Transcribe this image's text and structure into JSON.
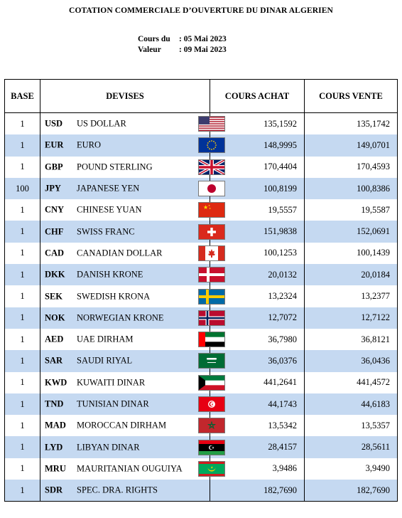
{
  "title": "COTATION COMMERCIALE D’OUVERTURE DU DINAR ALGERIEN",
  "cours_label": "Cours du",
  "cours_value": ": 05 Mai 2023",
  "valeur_label": "Valeur",
  "valeur_value": ": 09 Mai 2023",
  "headers": {
    "base": "BASE",
    "devises": "DEVISES",
    "achat": "COURS ACHAT",
    "vente": "COURS VENTE"
  },
  "rows": [
    {
      "base": "1",
      "code": "USD",
      "name": "US DOLLAR",
      "flag": "us-flag",
      "achat": "135,1592",
      "vente": "135,1742"
    },
    {
      "base": "1",
      "code": "EUR",
      "name": "EURO",
      "flag": "eu-flag",
      "achat": "148,9995",
      "vente": "149,0701"
    },
    {
      "base": "1",
      "code": "GBP",
      "name": "POUND STERLING",
      "flag": "uk-flag",
      "achat": "170,4404",
      "vente": "170,4593"
    },
    {
      "base": "100",
      "code": "JPY",
      "name": "JAPANESE YEN",
      "flag": "japan-flag",
      "achat": "100,8199",
      "vente": "100,8386"
    },
    {
      "base": "1",
      "code": "CNY",
      "name": "CHINESE YUAN",
      "flag": "china-flag",
      "achat": "19,5557",
      "vente": "19,5587"
    },
    {
      "base": "1",
      "code": "CHF",
      "name": "SWISS FRANC",
      "flag": "swiss-flag",
      "achat": "151,9838",
      "vente": "152,0691"
    },
    {
      "base": "1",
      "code": "CAD",
      "name": "CANADIAN DOLLAR",
      "flag": "canada-flag",
      "achat": "100,1253",
      "vente": "100,1439"
    },
    {
      "base": "1",
      "code": "DKK",
      "name": "DANISH KRONE",
      "flag": "denmark-flag",
      "achat": "20,0132",
      "vente": "20,0184"
    },
    {
      "base": "1",
      "code": "SEK",
      "name": "SWEDISH KRONA",
      "flag": "sweden-flag",
      "achat": "13,2324",
      "vente": "13,2377"
    },
    {
      "base": "1",
      "code": "NOK",
      "name": "NORWEGIAN KRONE",
      "flag": "norway-flag",
      "achat": "12,7072",
      "vente": "12,7122"
    },
    {
      "base": "1",
      "code": "AED",
      "name": "UAE DIRHAM",
      "flag": "uae-flag",
      "achat": "36,7980",
      "vente": "36,8121"
    },
    {
      "base": "1",
      "code": "SAR",
      "name": "SAUDI RIYAL",
      "flag": "saudi-flag",
      "achat": "36,0376",
      "vente": "36,0436"
    },
    {
      "base": "1",
      "code": "KWD",
      "name": "KUWAITI DINAR",
      "flag": "kuwait-flag",
      "achat": "441,2641",
      "vente": "441,4572"
    },
    {
      "base": "1",
      "code": "TND",
      "name": "TUNISIAN DINAR",
      "flag": "tunisia-flag",
      "achat": "44,1743",
      "vente": "44,6183"
    },
    {
      "base": "1",
      "code": "MAD",
      "name": "MOROCCAN DIRHAM",
      "flag": "morocco-flag",
      "achat": "13,5342",
      "vente": "13,5357"
    },
    {
      "base": "1",
      "code": "LYD",
      "name": "LIBYAN DINAR",
      "flag": "libya-flag",
      "achat": "28,4157",
      "vente": "28,5611"
    },
    {
      "base": "1",
      "code": "MRU",
      "name": "MAURITANIAN OUGUIYA",
      "flag": "mauritania-flag",
      "achat": "3,9486",
      "vente": "3,9490"
    },
    {
      "base": "1",
      "code": "SDR",
      "name": "SPEC. DRA. RIGHTS",
      "flag": "",
      "achat": "182,7690",
      "vente": "182,7690"
    }
  ],
  "colors": {
    "alt_row": "#c5d9f1"
  }
}
